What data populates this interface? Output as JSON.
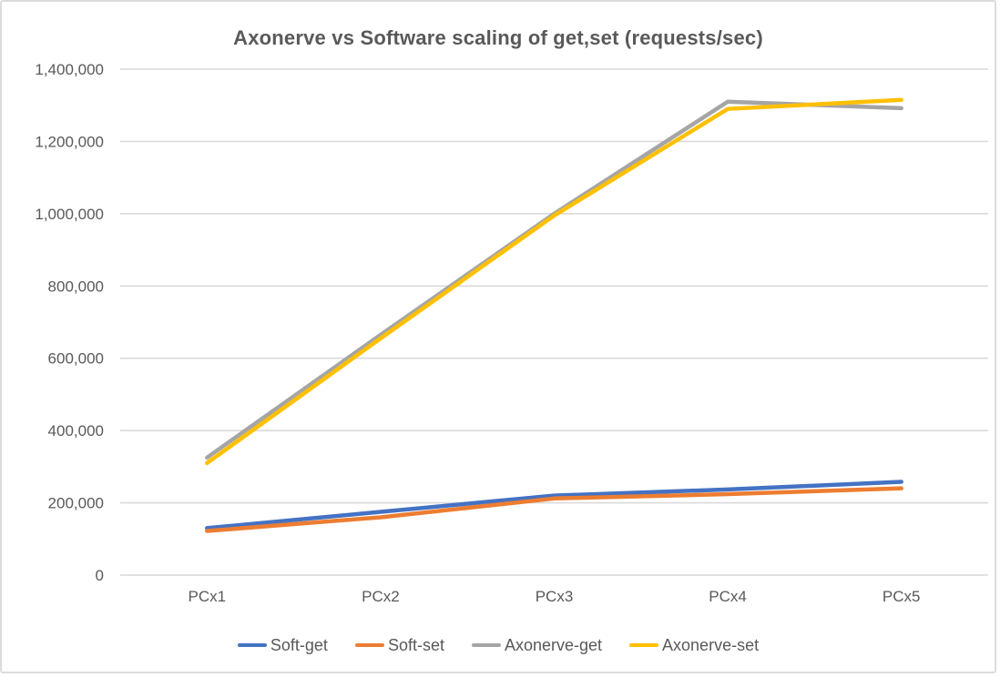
{
  "chart_data": {
    "type": "line",
    "title": "Axonerve vs Software scaling of get,set (requests/sec)",
    "categories": [
      "PCx1",
      "PCx2",
      "PCx3",
      "PCx4",
      "PCx5"
    ],
    "series": [
      {
        "name": "Soft-get",
        "color": "#4472C4",
        "values": [
          130000,
          175000,
          220000,
          237000,
          258000
        ]
      },
      {
        "name": "Soft-set",
        "color": "#ED7D31",
        "values": [
          122000,
          160000,
          212000,
          224000,
          240000
        ]
      },
      {
        "name": "Axonerve-get",
        "color": "#A5A5A5",
        "values": [
          325000,
          665000,
          1000000,
          1310000,
          1292000
        ]
      },
      {
        "name": "Axonerve-set",
        "color": "#FFC000",
        "values": [
          310000,
          655000,
          995000,
          1290000,
          1315000
        ]
      }
    ],
    "xlabel": "",
    "ylabel": "",
    "ylim": [
      0,
      1400000
    ],
    "y_ticks": [
      {
        "value": 0,
        "label": "0"
      },
      {
        "value": 200000,
        "label": "200,000"
      },
      {
        "value": 400000,
        "label": "400,000"
      },
      {
        "value": 600000,
        "label": "600,000"
      },
      {
        "value": 800000,
        "label": "800,000"
      },
      {
        "value": 1000000,
        "label": "1,000,000"
      },
      {
        "value": 1200000,
        "label": "1,200,000"
      },
      {
        "value": 1400000,
        "label": "1,400,000"
      }
    ],
    "grid": "horizontal",
    "legend_position": "bottom"
  },
  "styles": {
    "text_color": "#595959",
    "grid_color": "#D9D9D9",
    "axis_color": "#D9D9D9",
    "background": "#FFFFFF",
    "frame_border_color": "#DCDCDC",
    "line_width": 4.5
  }
}
